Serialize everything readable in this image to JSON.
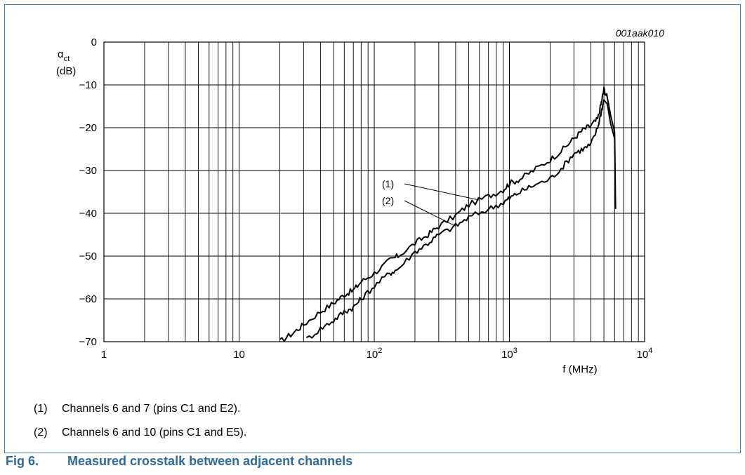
{
  "figure": {
    "code": "001aak010",
    "caption_label": "Fig 6.",
    "caption_text": "Measured crosstalk between adjacent channels",
    "notes": [
      {
        "num": "(1)",
        "text": "Channels 6 and 7 (pins C1 and E2)."
      },
      {
        "num": "(2)",
        "text": "Channels 6 and 10 (pins C1 and E5)."
      }
    ]
  },
  "colors": {
    "frame": "#4a7fa8",
    "caption": "#2a6a9e",
    "line": "#000000"
  },
  "chart_data": {
    "type": "line",
    "title": "",
    "ylabel_symbol": "α",
    "ylabel_sub": "ct",
    "ylabel_unit": "(dB)",
    "xlabel": "f (MHz)",
    "x_scale": "log",
    "xlim": [
      1,
      10000
    ],
    "ylim": [
      -70,
      0
    ],
    "grid": true,
    "y_ticks": [
      0,
      -10,
      -20,
      -30,
      -40,
      -50,
      -60,
      -70
    ],
    "y_tick_labels": [
      "0",
      "−10",
      "−20",
      "−30",
      "−40",
      "−50",
      "−60",
      "−70"
    ],
    "x_ticks": [
      1,
      10,
      100,
      1000,
      10000
    ],
    "x_tick_labels": [
      "1",
      "10",
      "10^2",
      "10^3",
      "10^4"
    ],
    "series": [
      {
        "name": "(1)",
        "x": [
          20,
          25,
          30,
          40,
          50,
          60,
          70,
          80,
          100,
          130,
          150,
          200,
          250,
          300,
          400,
          500,
          700,
          900,
          1000,
          1200,
          1500,
          2000,
          2500,
          3000,
          3500,
          4000,
          4500,
          4800,
          5000,
          5300,
          5600,
          6000,
          6100
        ],
        "y": [
          -70,
          -68,
          -66,
          -63,
          -61,
          -59,
          -58,
          -56,
          -54,
          -51,
          -50,
          -47,
          -45,
          -43,
          -40.5,
          -38,
          -36,
          -34.5,
          -33,
          -32,
          -30,
          -27.5,
          -25,
          -22.5,
          -20.5,
          -19.5,
          -18,
          -14,
          -11,
          -13,
          -17,
          -21,
          -39
        ]
      },
      {
        "name": "(2)",
        "x": [
          30,
          40,
          50,
          60,
          70,
          80,
          100,
          130,
          150,
          200,
          250,
          300,
          400,
          500,
          700,
          900,
          1000,
          1200,
          1500,
          2000,
          2500,
          3000,
          3500,
          4000,
          4500,
          4800,
          5000,
          5300,
          5600,
          6000
        ],
        "y": [
          -70,
          -67,
          -65,
          -63,
          -62,
          -60,
          -57,
          -54,
          -53,
          -49,
          -47,
          -45,
          -43,
          -41,
          -39,
          -37.5,
          -36.5,
          -35,
          -33.5,
          -32,
          -29,
          -26,
          -25,
          -24,
          -20,
          -16,
          -13.5,
          -14.5,
          -19,
          -22.5
        ]
      }
    ],
    "annotations": [
      {
        "label": "(1)",
        "series": "(1)",
        "at_x": 600
      },
      {
        "label": "(2)",
        "series": "(2)",
        "at_x": 400
      }
    ]
  }
}
